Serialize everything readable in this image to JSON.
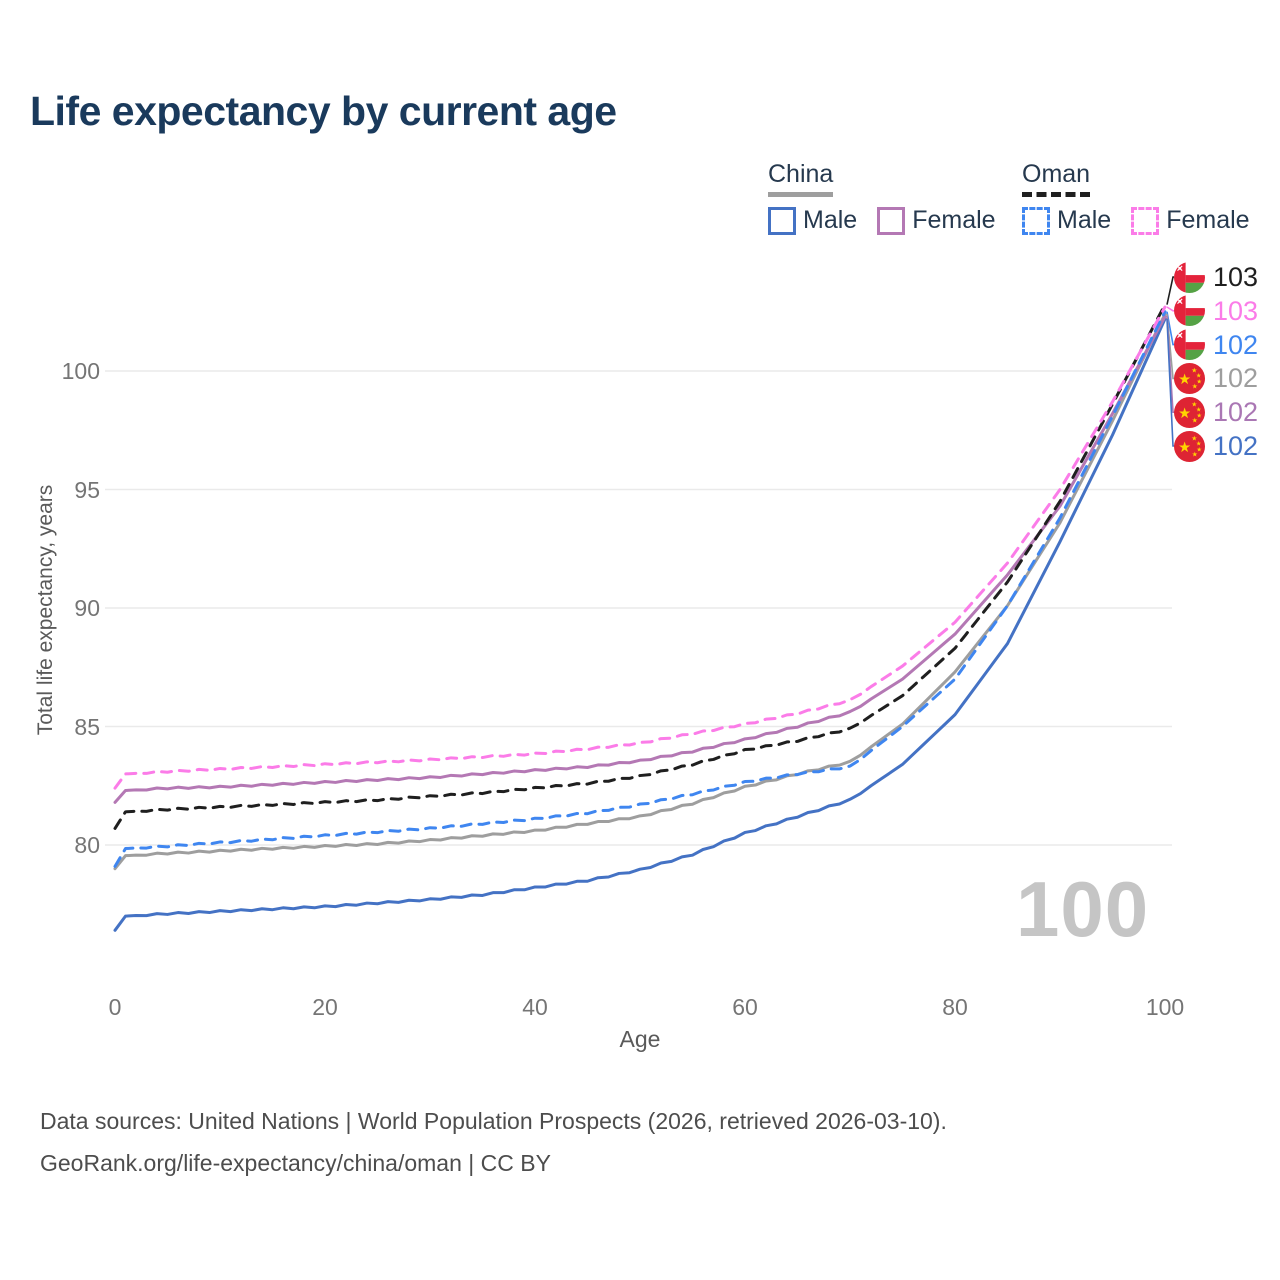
{
  "title": "Life expectancy by current age",
  "legend": {
    "groups": [
      {
        "label": "China",
        "dash": "solid",
        "line_color": "#9e9e9e",
        "items": [
          {
            "label": "Male",
            "color": "#4472c4",
            "dash": "solid"
          },
          {
            "label": "Female",
            "color": "#b478b4",
            "dash": "solid"
          }
        ]
      },
      {
        "label": "Oman",
        "dash": "dashed",
        "line_color": "#1f1f1f",
        "items": [
          {
            "label": "Male",
            "color": "#3f86f0",
            "dash": "dashed"
          },
          {
            "label": "Female",
            "color": "#fb7ce8",
            "dash": "dashed"
          }
        ]
      }
    ]
  },
  "axes": {
    "y_label": "Total life expectancy, years",
    "x_label": "Age",
    "y_ticks": [
      80,
      85,
      90,
      95,
      100
    ],
    "x_ticks": [
      0,
      20,
      40,
      60,
      80,
      100
    ]
  },
  "watermark": "100",
  "end_labels": [
    {
      "flag": "oman",
      "value": "103",
      "color": "#1f1f1f",
      "series": "Oman both sexes"
    },
    {
      "flag": "oman",
      "value": "103",
      "color": "#fb7ce8",
      "series": "Oman female"
    },
    {
      "flag": "oman",
      "value": "102",
      "color": "#3f86f0",
      "series": "Oman male"
    },
    {
      "flag": "china",
      "value": "102",
      "color": "#9e9e9e",
      "series": "China both sexes"
    },
    {
      "flag": "china",
      "value": "102",
      "color": "#aa77b4",
      "series": "China female"
    },
    {
      "flag": "china",
      "value": "102",
      "color": "#4472c4",
      "series": "China male"
    }
  ],
  "footer": {
    "line1": "Data sources: United Nations | World Population Prospects (2026, retrieved 2026-03-10).",
    "line2": "GeoRank.org/life-expectancy/china/oman | CC BY"
  },
  "chart_data": {
    "type": "line",
    "title": "Life expectancy by current age",
    "xlabel": "Age",
    "ylabel": "Total life expectancy, years",
    "xlim": [
      0,
      100
    ],
    "ylim": [
      76,
      103.5
    ],
    "grid": "horizontal",
    "legend_position": "top-right",
    "x": [
      0,
      1,
      5,
      10,
      15,
      20,
      25,
      30,
      35,
      40,
      45,
      50,
      55,
      60,
      65,
      70,
      75,
      80,
      85,
      90,
      95,
      100
    ],
    "series": [
      {
        "name": "China male",
        "country": "China",
        "sex": "male",
        "color": "#4472c4",
        "dash": "solid",
        "values": [
          76.4,
          77.0,
          77.1,
          77.2,
          77.3,
          77.4,
          77.55,
          77.7,
          77.9,
          78.2,
          78.5,
          78.95,
          79.6,
          80.5,
          81.2,
          81.9,
          83.4,
          85.5,
          88.5,
          92.8,
          97.3,
          102.2
        ]
      },
      {
        "name": "China both sexes",
        "country": "China",
        "sex": "both",
        "color": "#9e9e9e",
        "dash": "solid",
        "values": [
          79.0,
          79.55,
          79.65,
          79.75,
          79.85,
          79.95,
          80.05,
          80.2,
          80.4,
          80.6,
          80.9,
          81.2,
          81.75,
          82.45,
          83.0,
          83.5,
          85.1,
          87.3,
          90.1,
          93.6,
          97.9,
          102.4
        ]
      },
      {
        "name": "China female",
        "country": "China",
        "sex": "female",
        "color": "#b478b4",
        "dash": "solid",
        "values": [
          81.8,
          82.3,
          82.4,
          82.45,
          82.55,
          82.65,
          82.75,
          82.85,
          83.0,
          83.15,
          83.3,
          83.55,
          83.95,
          84.45,
          85.0,
          85.6,
          87.0,
          88.9,
          91.4,
          94.3,
          98.2,
          102.3
        ]
      },
      {
        "name": "Oman male",
        "country": "Oman",
        "sex": "male",
        "color": "#3f86f0",
        "dash": "dashed",
        "values": [
          79.1,
          79.85,
          79.95,
          80.1,
          80.25,
          80.4,
          80.55,
          80.7,
          80.9,
          81.1,
          81.35,
          81.7,
          82.15,
          82.65,
          83.0,
          83.3,
          85.0,
          87.0,
          90.1,
          93.8,
          98.1,
          102.5
        ]
      },
      {
        "name": "Oman both sexes",
        "country": "Oman",
        "sex": "both",
        "color": "#1f1f1f",
        "dash": "dashed",
        "values": [
          80.7,
          81.4,
          81.5,
          81.6,
          81.7,
          81.8,
          81.9,
          82.05,
          82.2,
          82.4,
          82.6,
          82.9,
          83.4,
          84.0,
          84.4,
          84.9,
          86.3,
          88.3,
          91.1,
          94.5,
          98.6,
          102.8
        ]
      },
      {
        "name": "Oman female",
        "country": "Oman",
        "sex": "female",
        "color": "#fb7ce8",
        "dash": "dashed",
        "values": [
          82.4,
          83.0,
          83.1,
          83.2,
          83.3,
          83.4,
          83.5,
          83.6,
          83.72,
          83.85,
          84.05,
          84.3,
          84.7,
          85.1,
          85.55,
          86.1,
          87.55,
          89.4,
          91.9,
          95.0,
          98.7,
          102.7
        ]
      }
    ]
  }
}
